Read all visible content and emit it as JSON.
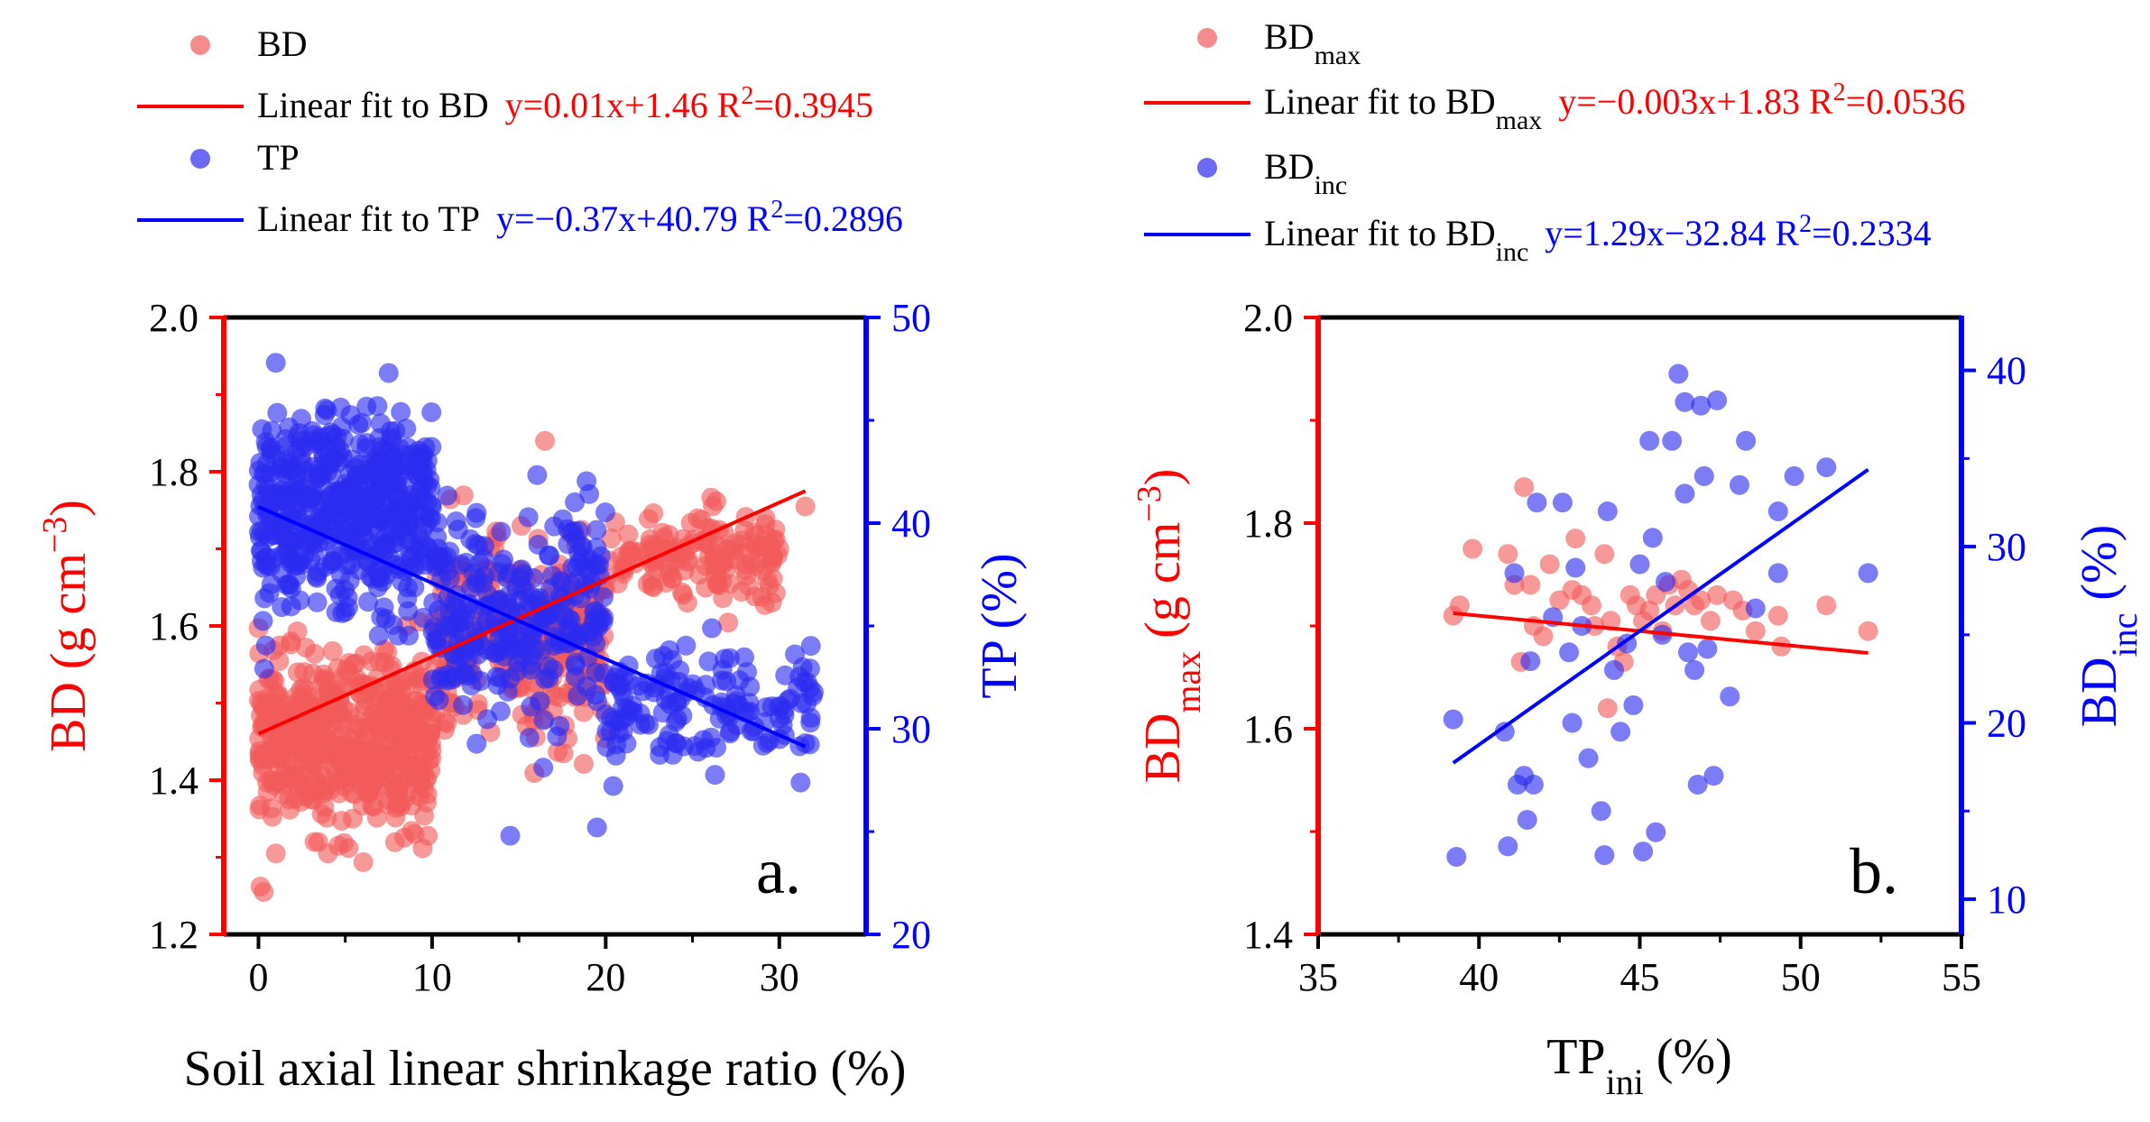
{
  "colors": {
    "red": "#ff0000",
    "blue": "#0000ff",
    "red_point": "#f25a5a",
    "blue_point": "#2b2bf0",
    "black": "#000000"
  },
  "chart_data": [
    {
      "type": "scatter",
      "panel_label": "a.",
      "xlabel": "Soil axial linear shrinkage ratio (%)",
      "ylabel_left": "BD (g cm",
      "ylabel_left_sup": "−3",
      "ylabel_left_end": ")",
      "ylabel_right": "TP (%)",
      "xlim": [
        -2,
        35
      ],
      "ylim_left": [
        1.2,
        2.0
      ],
      "ylim_right": [
        20,
        50
      ],
      "x_ticks": [
        0,
        10,
        20,
        30
      ],
      "x_tick_labels": [
        "0",
        "10",
        "20",
        "30"
      ],
      "y_left_ticks": [
        1.2,
        1.4,
        1.6,
        1.8,
        2.0
      ],
      "y_left_tick_labels": [
        "1.2",
        "1.4",
        "1.6",
        "1.8",
        "2.0"
      ],
      "y_right_ticks": [
        20,
        30,
        40,
        50
      ],
      "y_right_tick_labels": [
        "20",
        "30",
        "40",
        "50"
      ],
      "legend": [
        {
          "kind": "marker",
          "series": "BD",
          "text": "BD"
        },
        {
          "kind": "line",
          "series": "BD",
          "text": "Linear fit to BD",
          "equation": "y=0.01x+1.46 R",
          "r2_sup": "2",
          "r2_value": "=0.3945"
        },
        {
          "kind": "marker",
          "series": "TP",
          "text": "TP"
        },
        {
          "kind": "line",
          "series": "TP",
          "text": "Linear fit to TP",
          "equation": "y=−0.37x+40.79 R",
          "r2_sup": "2",
          "r2_value": "=0.2896"
        }
      ],
      "series": [
        {
          "name": "BD",
          "axis": "left",
          "color": "#f25a5a",
          "fit": {
            "slope": 0.01,
            "intercept": 1.46,
            "r2": 0.3945,
            "x_range": [
              0,
              31.5
            ]
          },
          "cluster_summary": [
            {
              "x_range": [
                0,
                10
              ],
              "y_center": 1.45,
              "y_spread": 0.09,
              "count": 520
            },
            {
              "x_range": [
                10,
                20
              ],
              "y_center": 1.58,
              "y_spread": 0.1,
              "count": 280
            },
            {
              "x_range": [
                20,
                30
              ],
              "y_center": 1.69,
              "y_spread": 0.05,
              "count": 150
            }
          ],
          "points_highlight": [
            {
              "x": 0.3,
              "y": 1.255
            },
            {
              "x": 1.0,
              "y": 1.305
            },
            {
              "x": 4.0,
              "y": 1.305
            },
            {
              "x": 4.6,
              "y": 1.315
            },
            {
              "x": 16.5,
              "y": 1.84
            },
            {
              "x": 31.5,
              "y": 1.755
            },
            {
              "x": 30.0,
              "y": 1.7
            },
            {
              "x": 29.2,
              "y": 1.74
            }
          ]
        },
        {
          "name": "TP",
          "axis": "right",
          "color": "#2b2bf0",
          "fit": {
            "slope": -0.37,
            "intercept": 40.79,
            "r2": 0.2896,
            "x_range": [
              0,
              31.5
            ]
          },
          "cluster_summary": [
            {
              "x_range": [
                0,
                10
              ],
              "y_center": 40.5,
              "y_spread": 3.8,
              "count": 520
            },
            {
              "x_range": [
                10,
                20
              ],
              "y_center": 35.5,
              "y_spread": 4.2,
              "count": 280
            },
            {
              "x_range": [
                20,
                32
              ],
              "y_center": 31.0,
              "y_spread": 2.6,
              "count": 150
            }
          ],
          "points_highlight": [
            {
              "x": 1.0,
              "y": 47.8
            },
            {
              "x": 7.5,
              "y": 47.3
            },
            {
              "x": 14.5,
              "y": 24.8
            },
            {
              "x": 19.5,
              "y": 25.2
            },
            {
              "x": 31.5,
              "y": 29.3
            },
            {
              "x": 30.0,
              "y": 30.5
            }
          ]
        }
      ]
    },
    {
      "type": "scatter",
      "panel_label": "b.",
      "xlabel": "TP",
      "xlabel_sub": "ini",
      "xlabel_end": " (%)",
      "ylabel_left": "BD",
      "ylabel_left_sub": "max",
      "ylabel_left_mid": " (g cm",
      "ylabel_left_sup": "−3",
      "ylabel_left_end": ")",
      "ylabel_right": "BD",
      "ylabel_right_sub": "inc",
      "ylabel_right_end": " (%)",
      "xlim": [
        35,
        55
      ],
      "ylim_left": [
        1.4,
        2.0
      ],
      "ylim_right": [
        8,
        43
      ],
      "x_ticks": [
        35,
        40,
        45,
        50,
        55
      ],
      "x_tick_labels": [
        "35",
        "40",
        "45",
        "50",
        "55"
      ],
      "y_left_ticks": [
        1.4,
        1.6,
        1.8,
        2.0
      ],
      "y_left_tick_labels": [
        "1.4",
        "1.6",
        "1.8",
        "2.0"
      ],
      "y_right_ticks": [
        10,
        20,
        30,
        40
      ],
      "y_right_tick_labels": [
        "10",
        "20",
        "30",
        "40"
      ],
      "legend": [
        {
          "kind": "marker",
          "series": "BDmax",
          "text": "BD",
          "sub": "max"
        },
        {
          "kind": "line",
          "series": "BDmax",
          "text": "Linear fit to BD",
          "sub": "max",
          "equation": "y=−0.003x+1.83 R",
          "r2_sup": "2",
          "r2_value": "=0.0536"
        },
        {
          "kind": "marker",
          "series": "BDinc",
          "text": "BD",
          "sub": "inc"
        },
        {
          "kind": "line",
          "series": "BDinc",
          "text": "Linear fit to BD",
          "sub": "inc",
          "equation": "y=1.29x−32.84 R",
          "r2_sup": "2",
          "r2_value": "=0.2334"
        }
      ],
      "series": [
        {
          "name": "BDmax",
          "axis": "left",
          "color": "#f25a5a",
          "fit": {
            "slope": -0.003,
            "intercept": 1.83,
            "r2": 0.0536,
            "x_range": [
              39.2,
              52.1
            ]
          },
          "points": [
            {
              "x": 39.2,
              "y": 1.71
            },
            {
              "x": 39.4,
              "y": 1.72
            },
            {
              "x": 39.8,
              "y": 1.775
            },
            {
              "x": 40.9,
              "y": 1.77
            },
            {
              "x": 41.1,
              "y": 1.74
            },
            {
              "x": 41.3,
              "y": 1.665
            },
            {
              "x": 41.4,
              "y": 1.835
            },
            {
              "x": 41.6,
              "y": 1.74
            },
            {
              "x": 41.7,
              "y": 1.7
            },
            {
              "x": 42.0,
              "y": 1.69
            },
            {
              "x": 42.2,
              "y": 1.76
            },
            {
              "x": 42.5,
              "y": 1.725
            },
            {
              "x": 42.9,
              "y": 1.735
            },
            {
              "x": 43.0,
              "y": 1.785
            },
            {
              "x": 43.2,
              "y": 1.73
            },
            {
              "x": 43.5,
              "y": 1.72
            },
            {
              "x": 43.6,
              "y": 1.7
            },
            {
              "x": 43.9,
              "y": 1.77
            },
            {
              "x": 44.0,
              "y": 1.62
            },
            {
              "x": 44.1,
              "y": 1.705
            },
            {
              "x": 44.3,
              "y": 1.68
            },
            {
              "x": 44.5,
              "y": 1.665
            },
            {
              "x": 44.7,
              "y": 1.73
            },
            {
              "x": 44.9,
              "y": 1.72
            },
            {
              "x": 45.1,
              "y": 1.705
            },
            {
              "x": 45.3,
              "y": 1.715
            },
            {
              "x": 45.5,
              "y": 1.73
            },
            {
              "x": 45.7,
              "y": 1.695
            },
            {
              "x": 45.9,
              "y": 1.74
            },
            {
              "x": 46.1,
              "y": 1.72
            },
            {
              "x": 46.3,
              "y": 1.745
            },
            {
              "x": 46.5,
              "y": 1.735
            },
            {
              "x": 46.7,
              "y": 1.72
            },
            {
              "x": 46.9,
              "y": 1.725
            },
            {
              "x": 47.2,
              "y": 1.705
            },
            {
              "x": 47.4,
              "y": 1.73
            },
            {
              "x": 47.9,
              "y": 1.725
            },
            {
              "x": 48.2,
              "y": 1.715
            },
            {
              "x": 48.6,
              "y": 1.695
            },
            {
              "x": 49.3,
              "y": 1.71
            },
            {
              "x": 49.4,
              "y": 1.68
            },
            {
              "x": 50.8,
              "y": 1.72
            },
            {
              "x": 52.1,
              "y": 1.695
            }
          ]
        },
        {
          "name": "BDinc",
          "axis": "right",
          "color": "#2b2bf0",
          "fit": {
            "slope": 1.29,
            "intercept": -32.84,
            "r2": 0.2334,
            "x_range": [
              39.2,
              52.1
            ]
          },
          "points": [
            {
              "x": 39.2,
              "y": 20.2
            },
            {
              "x": 39.3,
              "y": 12.4
            },
            {
              "x": 40.8,
              "y": 19.5
            },
            {
              "x": 40.9,
              "y": 13.0
            },
            {
              "x": 41.1,
              "y": 28.5
            },
            {
              "x": 41.2,
              "y": 16.5
            },
            {
              "x": 41.4,
              "y": 17.0
            },
            {
              "x": 41.5,
              "y": 14.5
            },
            {
              "x": 41.6,
              "y": 23.5
            },
            {
              "x": 41.7,
              "y": 16.5
            },
            {
              "x": 41.8,
              "y": 32.5
            },
            {
              "x": 42.3,
              "y": 26.0
            },
            {
              "x": 42.6,
              "y": 32.5
            },
            {
              "x": 42.8,
              "y": 24.0
            },
            {
              "x": 42.9,
              "y": 20.0
            },
            {
              "x": 43.0,
              "y": 28.8
            },
            {
              "x": 43.2,
              "y": 25.5
            },
            {
              "x": 43.4,
              "y": 18.0
            },
            {
              "x": 43.8,
              "y": 15.0
            },
            {
              "x": 43.9,
              "y": 12.5
            },
            {
              "x": 44.0,
              "y": 32.0
            },
            {
              "x": 44.2,
              "y": 23.0
            },
            {
              "x": 44.4,
              "y": 19.5
            },
            {
              "x": 44.6,
              "y": 24.5
            },
            {
              "x": 44.8,
              "y": 21.0
            },
            {
              "x": 45.0,
              "y": 29.0
            },
            {
              "x": 45.1,
              "y": 12.7
            },
            {
              "x": 45.3,
              "y": 36.0
            },
            {
              "x": 45.4,
              "y": 30.5
            },
            {
              "x": 45.5,
              "y": 13.8
            },
            {
              "x": 45.7,
              "y": 25.0
            },
            {
              "x": 45.8,
              "y": 28.0
            },
            {
              "x": 46.0,
              "y": 36.0
            },
            {
              "x": 46.2,
              "y": 39.8
            },
            {
              "x": 46.4,
              "y": 33.0
            },
            {
              "x": 46.4,
              "y": 38.2
            },
            {
              "x": 46.5,
              "y": 24.0
            },
            {
              "x": 46.7,
              "y": 23.0
            },
            {
              "x": 46.8,
              "y": 16.5
            },
            {
              "x": 46.9,
              "y": 38.0
            },
            {
              "x": 47.0,
              "y": 34.0
            },
            {
              "x": 47.1,
              "y": 24.2
            },
            {
              "x": 47.3,
              "y": 17.0
            },
            {
              "x": 47.4,
              "y": 38.3
            },
            {
              "x": 47.8,
              "y": 21.5
            },
            {
              "x": 48.1,
              "y": 33.5
            },
            {
              "x": 48.3,
              "y": 36.0
            },
            {
              "x": 48.6,
              "y": 26.5
            },
            {
              "x": 49.3,
              "y": 32.0
            },
            {
              "x": 49.3,
              "y": 28.5
            },
            {
              "x": 49.8,
              "y": 34.0
            },
            {
              "x": 50.8,
              "y": 34.5
            },
            {
              "x": 52.1,
              "y": 28.5
            }
          ]
        }
      ]
    }
  ]
}
